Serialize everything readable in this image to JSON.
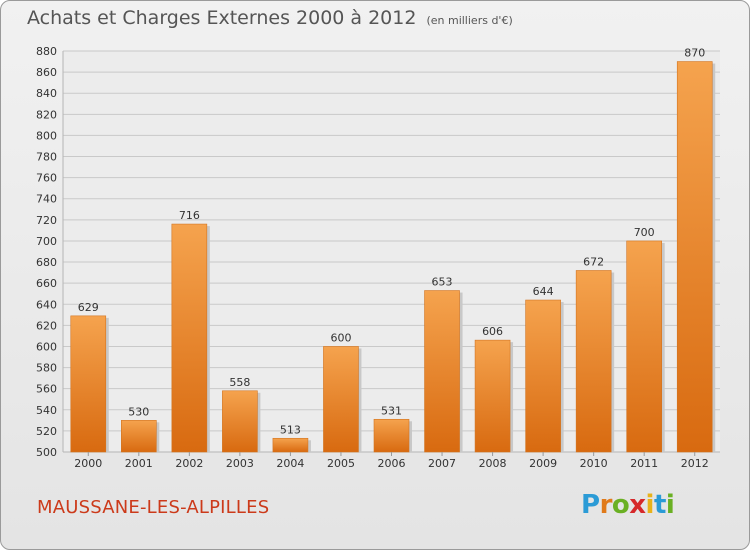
{
  "title": "Achats et Charges Externes 2000 à 2012",
  "subtitle": "(en milliers d'€)",
  "city": "MAUSSANE-LES-ALPILLES",
  "brand": {
    "letters": [
      "P",
      "r",
      "o",
      "x",
      "i",
      "t",
      "i"
    ],
    "colors": [
      "#2b9bd6",
      "#e07a1a",
      "#6ab023",
      "#d6282a",
      "#e8b21a",
      "#2b9bd6",
      "#6ab023"
    ]
  },
  "colors": {
    "bar_light": "#f5a34e",
    "bar_dark": "#d86a10",
    "grid": "#c9c9c9",
    "axis_text": "#333333"
  },
  "chart_data": {
    "type": "bar",
    "categories": [
      "2000",
      "2001",
      "2002",
      "2003",
      "2004",
      "2005",
      "2006",
      "2007",
      "2008",
      "2009",
      "2010",
      "2011",
      "2012"
    ],
    "values": [
      629,
      530,
      716,
      558,
      513,
      600,
      531,
      653,
      606,
      644,
      672,
      700,
      870
    ],
    "ylim": [
      500,
      880
    ],
    "yticks": [
      500,
      520,
      540,
      560,
      580,
      600,
      620,
      640,
      660,
      680,
      700,
      720,
      740,
      760,
      780,
      800,
      820,
      840,
      860,
      880
    ],
    "grid": true,
    "title": "Achats et Charges Externes 2000 à 2012",
    "xlabel": "",
    "ylabel": ""
  }
}
